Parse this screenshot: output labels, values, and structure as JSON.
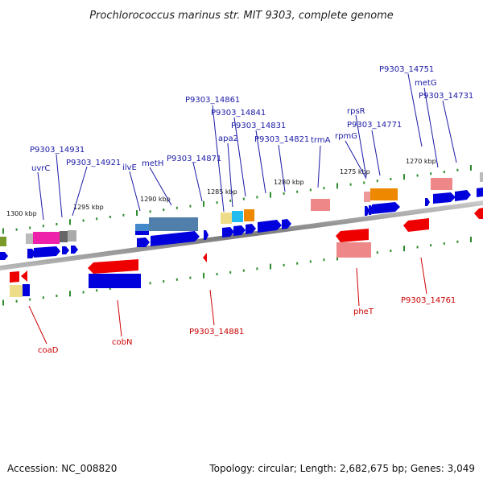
{
  "title": "Prochlorococcus marinus str. MIT 9303, complete genome",
  "accession": "Accession: NC_008820",
  "topology": "Topology: circular; Length: 2,682,675 bp; Genes: 3,049",
  "colors": {
    "forward_gene": "#0000dd",
    "reverse_gene": "#ee0000",
    "forward_label": "#1a1aa6",
    "reverse_label": "#cc0000",
    "tick": "#2e8b2e",
    "backbone": "#888888"
  },
  "kbp_marks": [
    {
      "text": "1300 kbp"
    },
    {
      "text": "1295 kbp"
    },
    {
      "text": "1290 kbp"
    },
    {
      "text": "1285 kbp"
    },
    {
      "text": "1280 kbp"
    },
    {
      "text": "1275 kbp"
    },
    {
      "text": "1270 kbp"
    }
  ],
  "forward_labels": [
    {
      "text": "uvrC"
    },
    {
      "text": "P9303_14931"
    },
    {
      "text": "P9303_14921"
    },
    {
      "text": "ilvE"
    },
    {
      "text": "metH"
    },
    {
      "text": "P9303_14871"
    },
    {
      "text": "P9303_14861"
    },
    {
      "text": "apa2"
    },
    {
      "text": "P9303_14841"
    },
    {
      "text": "P9303_14831"
    },
    {
      "text": "P9303_14821"
    },
    {
      "text": "trmA"
    },
    {
      "text": "rpmG"
    },
    {
      "text": "rpsR"
    },
    {
      "text": "P9303_14771"
    },
    {
      "text": "P9303_14751"
    },
    {
      "text": "metG"
    },
    {
      "text": "P9303_14731"
    }
  ],
  "reverse_labels": [
    {
      "text": "coaD"
    },
    {
      "text": "cobN"
    },
    {
      "text": "P9303_14881"
    },
    {
      "text": "pheT"
    },
    {
      "text": "P9303_14761"
    }
  ]
}
